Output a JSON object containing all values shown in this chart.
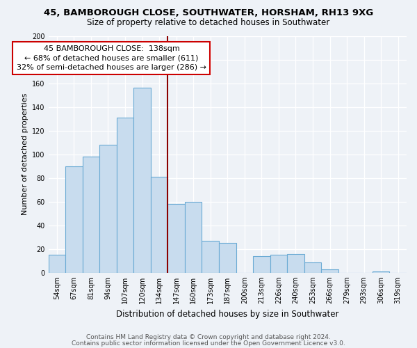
{
  "title1": "45, BAMBOROUGH CLOSE, SOUTHWATER, HORSHAM, RH13 9XG",
  "title2": "Size of property relative to detached houses in Southwater",
  "xlabel": "Distribution of detached houses by size in Southwater",
  "ylabel": "Number of detached properties",
  "categories": [
    "54sqm",
    "67sqm",
    "81sqm",
    "94sqm",
    "107sqm",
    "120sqm",
    "134sqm",
    "147sqm",
    "160sqm",
    "173sqm",
    "187sqm",
    "200sqm",
    "213sqm",
    "226sqm",
    "240sqm",
    "253sqm",
    "266sqm",
    "279sqm",
    "293sqm",
    "306sqm",
    "319sqm"
  ],
  "values": [
    15,
    90,
    98,
    108,
    131,
    156,
    81,
    58,
    60,
    27,
    25,
    0,
    14,
    15,
    16,
    9,
    3,
    0,
    0,
    1,
    0
  ],
  "bar_color": "#c8dcee",
  "bar_edge_color": "#6aaad4",
  "vline_after_index": 6,
  "vline_color": "#8b0000",
  "annotation_line1": "45 BAMBOROUGH CLOSE:  138sqm",
  "annotation_line2": "← 68% of detached houses are smaller (611)",
  "annotation_line3": "32% of semi-detached houses are larger (286) →",
  "annotation_box_edgecolor": "#cc0000",
  "annotation_box_facecolor": "white",
  "ylim": [
    0,
    200
  ],
  "yticks": [
    0,
    20,
    40,
    60,
    80,
    100,
    120,
    140,
    160,
    180,
    200
  ],
  "footer1": "Contains HM Land Registry data © Crown copyright and database right 2024.",
  "footer2": "Contains public sector information licensed under the Open Government Licence v3.0.",
  "background_color": "#eef2f7",
  "grid_color": "#ffffff",
  "title1_fontsize": 9.5,
  "title2_fontsize": 8.5,
  "ylabel_fontsize": 8,
  "xlabel_fontsize": 8.5,
  "tick_fontsize": 7,
  "footer_fontsize": 6.5,
  "annotation_fontsize": 8
}
